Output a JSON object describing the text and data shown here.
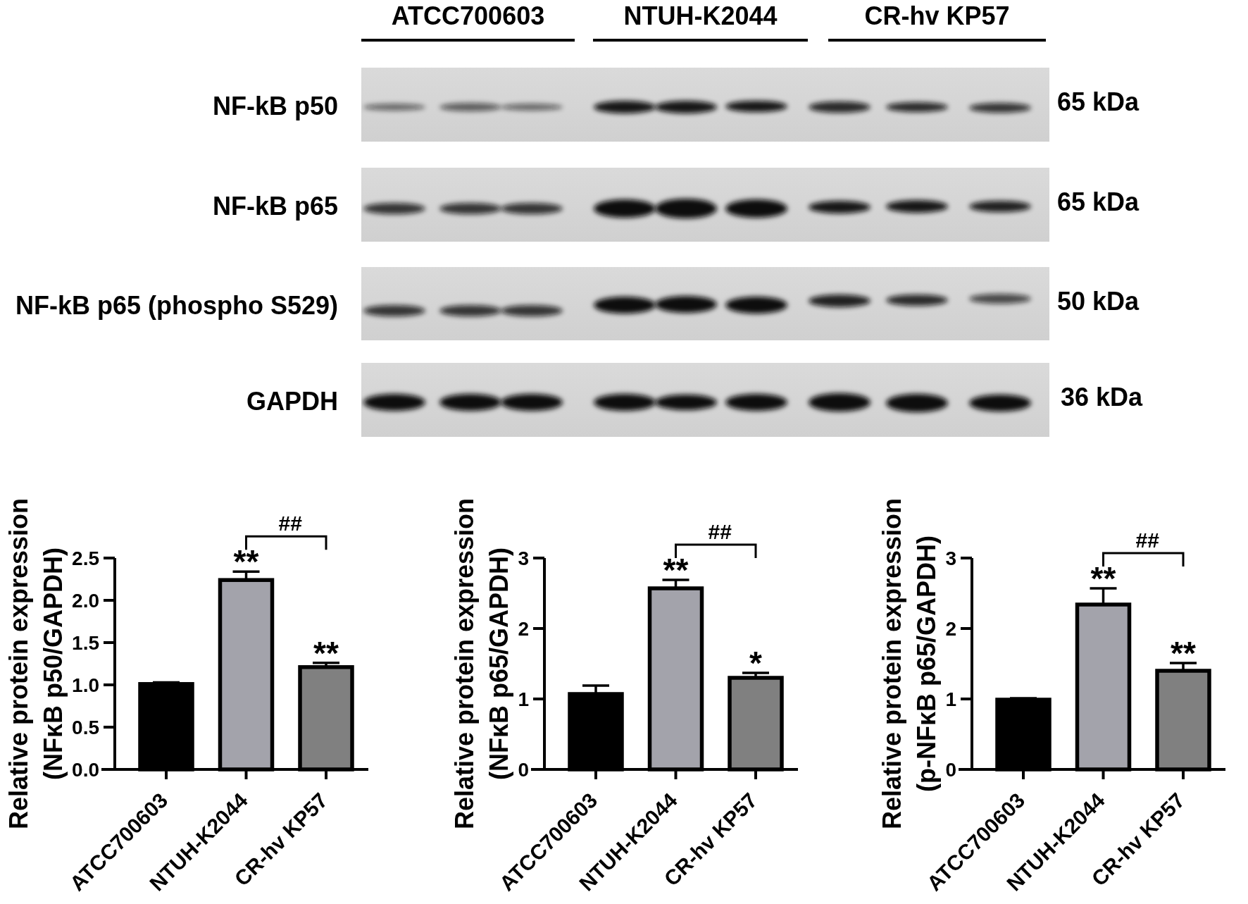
{
  "chart_data": [
    {
      "type": "other",
      "categories": [
        "ATCC700603",
        "NTUH-K2044",
        "CR-hv KP57"
      ],
      "y_categories": [
        "NF-kB p50",
        "NF-kB p65",
        "NF-kB p65 (phospho S529)",
        "GAPDH"
      ],
      "y2_categories": [
        "65 kDa",
        "65 kDa",
        "50 kDa",
        "36 kDa"
      ]
    },
    {
      "type": "bar",
      "categories": [
        "ATCC700603",
        "NTUH-K2044",
        "CR-hv KP57"
      ],
      "values": [
        1.01,
        2.24,
        1.21
      ],
      "colors": [
        "#000000",
        "#a3a3ab",
        "#808080"
      ],
      "errors": [
        [
          1.01,
          1.03
        ],
        [
          2.24,
          2.34
        ],
        [
          1.21,
          1.26
        ]
      ],
      "ylabel": "Relative protein expression\n(NFκB p50/GAPDH)",
      "ylim": [
        0,
        2.5
      ],
      "yticks": [
        {
          "value": 0,
          "label": "0.0"
        },
        0.5,
        {
          "value": 1,
          "label": "1.0"
        },
        1.5,
        {
          "value": 2,
          "label": "2.0"
        },
        2.5
      ],
      "annotations": [
        {
          "text": "**",
          "x": "NTUH-K2044",
          "y": 2.34
        },
        {
          "text": "**",
          "x": "CR-hv KP57",
          "y": 1.26
        },
        "##"
      ]
    },
    {
      "type": "bar",
      "categories": [
        "ATCC700603",
        "NTUH-K2044",
        "CR-hv KP57"
      ],
      "values": [
        1.07,
        2.57,
        1.3
      ],
      "colors": [
        "#000000",
        "#a3a3ab",
        "#808080"
      ],
      "errors": [
        [
          1.07,
          1.19
        ],
        [
          2.57,
          2.69
        ],
        [
          1.3,
          1.37
        ]
      ],
      "ylabel": "Relative protein expression\n(NFκB p65/GAPDH)",
      "ylim": [
        0,
        3
      ],
      "yticks": [
        0,
        1,
        2,
        3
      ],
      "annotations": [
        {
          "text": "**",
          "x": "NTUH-K2044",
          "y": 2.69
        },
        {
          "text": "*",
          "x": "CR-hv KP57",
          "y": 1.37
        },
        "##"
      ]
    },
    {
      "type": "bar",
      "categories": [
        "ATCC700603",
        "NTUH-K2044",
        "CR-hv KP57"
      ],
      "values": [
        0.99,
        2.34,
        1.4
      ],
      "colors": [
        "#000000",
        "#a3a3ab",
        "#808080"
      ],
      "errors": [
        [
          0.99,
          1.01
        ],
        [
          2.34,
          2.57
        ],
        [
          1.4,
          1.51
        ]
      ],
      "ylabel": "Relative protein expression\n(p-NFκB p65/GAPDH)",
      "ylim": [
        0,
        3
      ],
      "yticks": [
        0,
        1,
        2,
        3
      ],
      "annotations": [
        {
          "text": "**",
          "x": "NTUH-K2044",
          "y": 2.57
        },
        {
          "text": "**",
          "x": "CR-hv KP57",
          "y": 1.51
        },
        "##"
      ]
    }
  ]
}
